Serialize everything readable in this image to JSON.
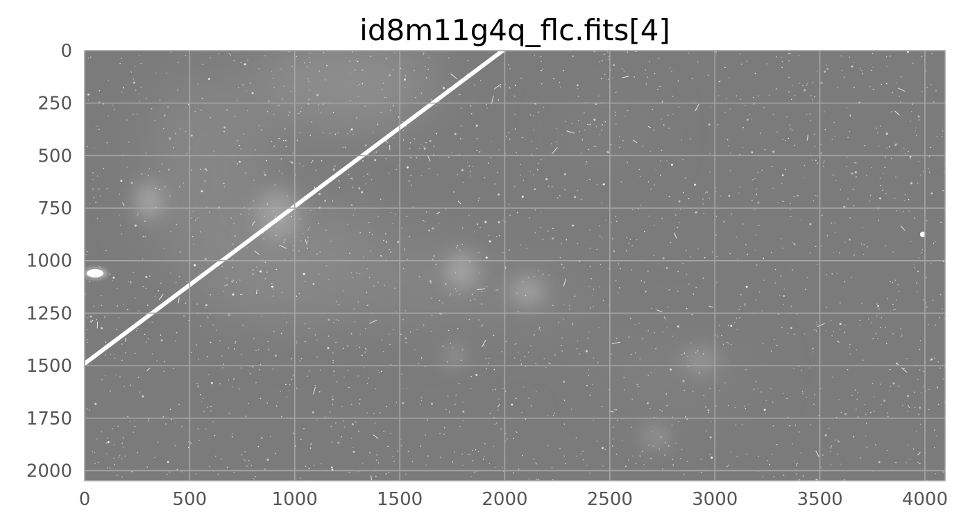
{
  "figure": {
    "title": "id8m11g4q_flc.fits[4]",
    "x_axis": {
      "range": [
        0,
        4096
      ],
      "tick_labels": [
        "0",
        "500",
        "1000",
        "1500",
        "2000",
        "2500",
        "3000",
        "3500",
        "4000"
      ],
      "tick_values": [
        0,
        500,
        1000,
        1500,
        2000,
        2500,
        3000,
        3500,
        4000
      ]
    },
    "y_axis": {
      "range": [
        0,
        2048
      ],
      "inverted": true,
      "tick_labels": [
        "0",
        "250",
        "500",
        "750",
        "1000",
        "1250",
        "1500",
        "1750",
        "2000"
      ],
      "tick_values": [
        0,
        250,
        500,
        750,
        1000,
        1250,
        1500,
        1750,
        2000
      ]
    },
    "grid": true,
    "colors": {
      "background": "#7b7b7b",
      "grid": "#a8a8a8",
      "frame": "#a8a8a8",
      "streak": "#ffffff",
      "nebula": "#9a9a9a"
    },
    "image": {
      "colormap": "gray",
      "features": {
        "satellite_trail": {
          "from": [
            0,
            1490
          ],
          "to": [
            1990,
            0
          ]
        },
        "bright_source": {
          "x": 50,
          "y": 1060
        },
        "point_source_right": {
          "x": 3990,
          "y": 875
        }
      }
    }
  }
}
